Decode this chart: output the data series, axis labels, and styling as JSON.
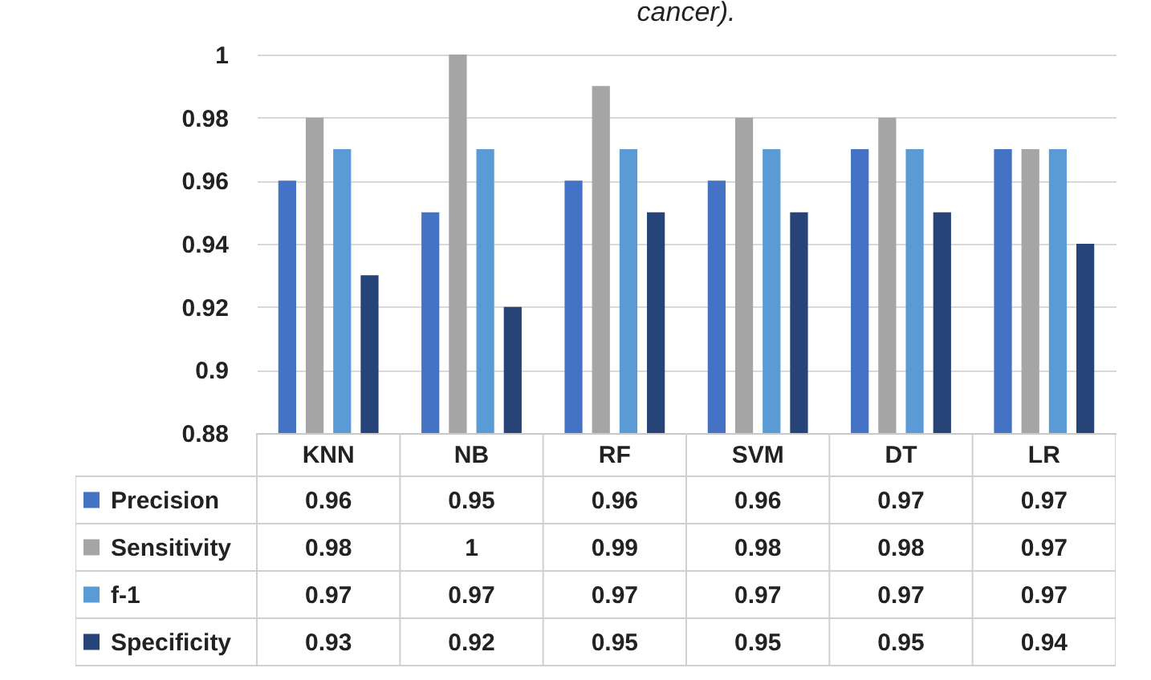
{
  "chart_data": {
    "type": "bar",
    "title": "cancer).",
    "categories": [
      "KNN",
      "NB",
      "RF",
      "SVM",
      "DT",
      "LR"
    ],
    "series": [
      {
        "name": "Precision",
        "color": "#4472c4",
        "values": [
          0.96,
          0.95,
          0.96,
          0.96,
          0.97,
          0.97
        ]
      },
      {
        "name": "Sensitivity",
        "color": "#a5a5a5",
        "values": [
          0.98,
          1,
          0.99,
          0.98,
          0.98,
          0.97
        ]
      },
      {
        "name": "f-1",
        "color": "#5b9bd5",
        "values": [
          0.97,
          0.97,
          0.97,
          0.97,
          0.97,
          0.97
        ]
      },
      {
        "name": "Specificity",
        "color": "#264478",
        "values": [
          0.93,
          0.92,
          0.95,
          0.95,
          0.95,
          0.94
        ]
      }
    ],
    "ylim": [
      0.88,
      1
    ],
    "yticks": [
      0.88,
      0.9,
      0.92,
      0.94,
      0.96,
      0.98,
      1
    ],
    "grid": true,
    "legend": "bottom",
    "data_labels": true
  }
}
